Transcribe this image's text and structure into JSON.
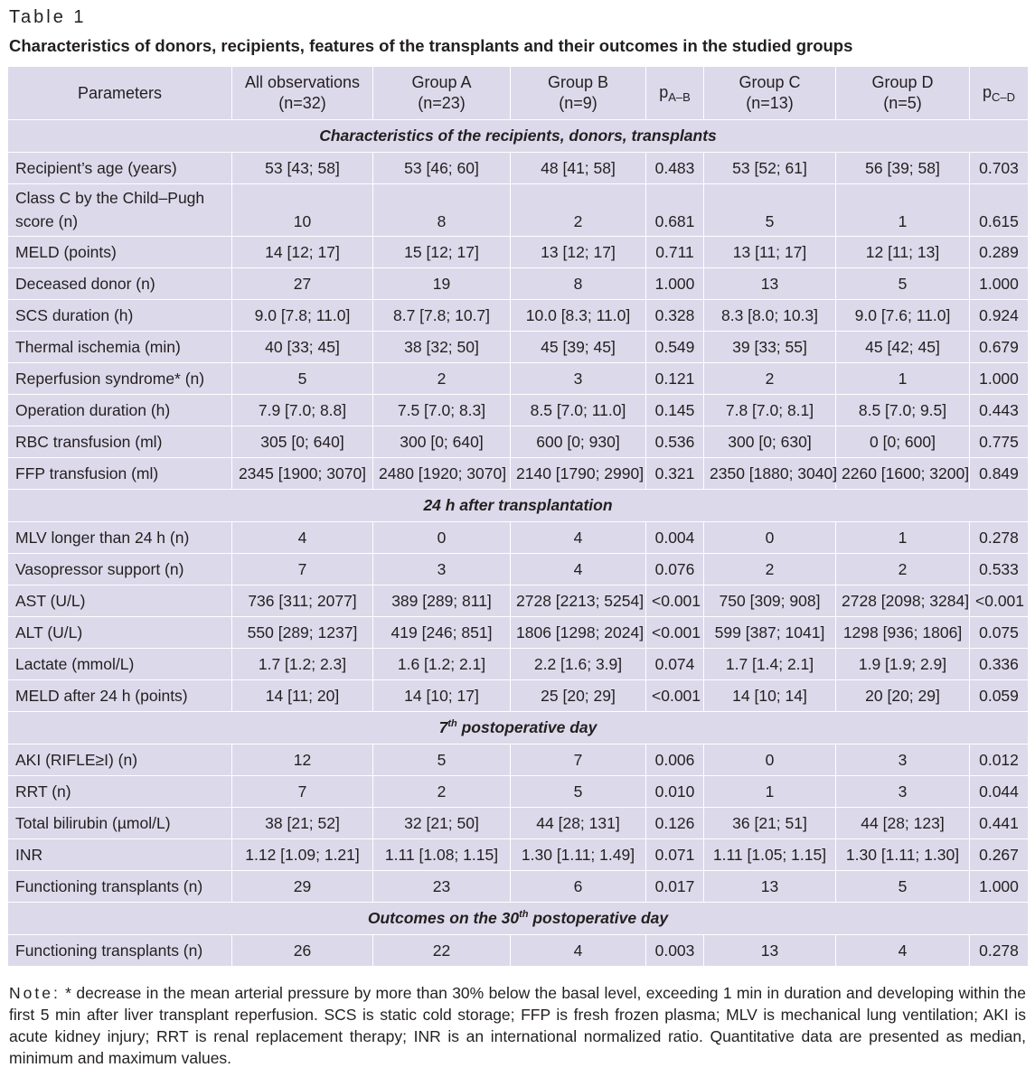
{
  "table_label": "Table 1",
  "caption": "Characteristics of donors, recipients, features of the transplants and their outcomes in the studied groups",
  "header": {
    "parameters": "Parameters",
    "all_obs": [
      "All observations",
      "(n=32)"
    ],
    "group_a": [
      "Group A",
      "(n=23)"
    ],
    "group_b": [
      "Group B",
      "(n=9)"
    ],
    "p_ab": {
      "p": "p",
      "sub": "A–B"
    },
    "group_c": [
      "Group C",
      "(n=13)"
    ],
    "group_d": [
      "Group D",
      "(n=5)"
    ],
    "p_cd": {
      "p": "p",
      "sub": "C–D"
    }
  },
  "sections": [
    {
      "title": "Characteristics of the recipients, donors, transplants",
      "rows": [
        [
          "Recipient’s age (years)",
          "53 [43; 58]",
          "53 [46; 60]",
          "48 [41; 58]",
          "0.483",
          "53 [52; 61]",
          "56 [39; 58]",
          "0.703"
        ],
        [
          "Class C by the Child–Pugh score (n)",
          "10",
          "8",
          "2",
          "0.681",
          "5",
          "1",
          "0.615"
        ],
        [
          "MELD (points)",
          "14 [12; 17]",
          "15 [12; 17]",
          "13 [12; 17]",
          "0.711",
          "13 [11; 17]",
          "12 [11; 13]",
          "0.289"
        ],
        [
          "Deceased donor (n)",
          "27",
          "19",
          "8",
          "1.000",
          "13",
          "5",
          "1.000"
        ],
        [
          "SCS duration (h)",
          "9.0 [7.8; 11.0]",
          "8.7 [7.8; 10.7]",
          "10.0 [8.3; 11.0]",
          "0.328",
          "8.3 [8.0; 10.3]",
          "9.0 [7.6; 11.0]",
          "0.924"
        ],
        [
          "Thermal ischemia (min)",
          "40 [33; 45]",
          "38 [32; 50]",
          "45 [39; 45]",
          "0.549",
          "39 [33; 55]",
          "45 [42; 45]",
          "0.679"
        ],
        [
          "Reperfusion syndrome* (n)",
          "5",
          "2",
          "3",
          "0.121",
          "2",
          "1",
          "1.000"
        ],
        [
          "Operation duration (h)",
          "7.9 [7.0; 8.8]",
          "7.5 [7.0; 8.3]",
          "8.5 [7.0; 11.0]",
          "0.145",
          "7.8 [7.0; 8.1]",
          "8.5 [7.0; 9.5]",
          "0.443"
        ],
        [
          "RBC transfusion (ml)",
          "305 [0; 640]",
          "300 [0; 640]",
          "600 [0; 930]",
          "0.536",
          "300 [0; 630]",
          "0 [0; 600]",
          "0.775"
        ],
        [
          "FFP transfusion (ml)",
          "2345 [1900; 3070]",
          "2480 [1920; 3070]",
          "2140 [1790; 2990]",
          "0.321",
          "2350 [1880; 3040]",
          "2260 [1600; 3200]",
          "0.849"
        ]
      ]
    },
    {
      "title": "24 h after transplantation",
      "rows": [
        [
          "MLV longer than 24 h (n)",
          "4",
          "0",
          "4",
          "0.004",
          "0",
          "1",
          "0.278"
        ],
        [
          "Vasopressor support (n)",
          "7",
          "3",
          "4",
          "0.076",
          "2",
          "2",
          "0.533"
        ],
        [
          "AST (U/L)",
          "736 [311; 2077]",
          "389 [289; 811]",
          "2728 [2213; 5254]",
          "<0.001",
          "750 [309; 908]",
          "2728 [2098; 3284]",
          "<0.001"
        ],
        [
          "ALT (U/L)",
          "550 [289; 1237]",
          "419 [246; 851]",
          "1806 [1298; 2024]",
          "<0.001",
          "599 [387; 1041]",
          "1298 [936; 1806]",
          "0.075"
        ],
        [
          "Lactate (mmol/L)",
          "1.7 [1.2; 2.3]",
          "1.6 [1.2; 2.1]",
          "2.2 [1.6; 3.9]",
          "0.074",
          "1.7 [1.4; 2.1]",
          "1.9 [1.9; 2.9]",
          "0.336"
        ],
        [
          "MELD after 24 h (points)",
          "14 [11; 20]",
          "14 [10; 17]",
          "25 [20; 29]",
          "<0.001",
          "14 [10; 14]",
          "20 [20; 29]",
          "0.059"
        ]
      ]
    },
    {
      "title": "7th postoperative day",
      "title_parts": {
        "pre": "7",
        "sup": "th",
        "post": " postoperative day"
      },
      "rows": [
        [
          "AKI (RIFLE≥I) (n)",
          "12",
          "5",
          "7",
          "0.006",
          "0",
          "3",
          "0.012"
        ],
        [
          "RRT (n)",
          "7",
          "2",
          "5",
          "0.010",
          "1",
          "3",
          "0.044"
        ],
        [
          "Total bilirubin (µmol/L)",
          "38 [21; 52]",
          "32 [21; 50]",
          "44 [28; 131]",
          "0.126",
          "36 [21; 51]",
          "44 [28; 123]",
          "0.441"
        ],
        [
          "INR",
          "1.12 [1.09; 1.21]",
          "1.11 [1.08; 1.15]",
          "1.30 [1.11; 1.49]",
          "0.071",
          "1.11 [1.05; 1.15]",
          "1.30 [1.11; 1.30]",
          "0.267"
        ],
        [
          "Functioning transplants (n)",
          "29",
          "23",
          "6",
          "0.017",
          "13",
          "5",
          "1.000"
        ]
      ]
    },
    {
      "title": "Outcomes on the 30th postoperative day",
      "title_parts": {
        "pre": "Outcomes on the 30",
        "sup": "th",
        "post": " postoperative day"
      },
      "rows": [
        [
          "Functioning transplants (n)",
          "26",
          "22",
          "4",
          "0.003",
          "13",
          "4",
          "0.278"
        ]
      ]
    }
  ],
  "note": {
    "label": "Note:",
    "text": " * decrease in the mean arterial pressure by more than 30% below the basal level, exceeding 1 min in duration and developing within the first 5 min after liver transplant reperfusion. SCS is static cold storage; FFP is fresh frozen plasma; MLV is mechanical lung ventilation; AKI is acute kidney injury; RRT is renal replacement therapy; INR is an international normalized ratio. Quantitative data are presented as median, minimum and maximum values."
  }
}
